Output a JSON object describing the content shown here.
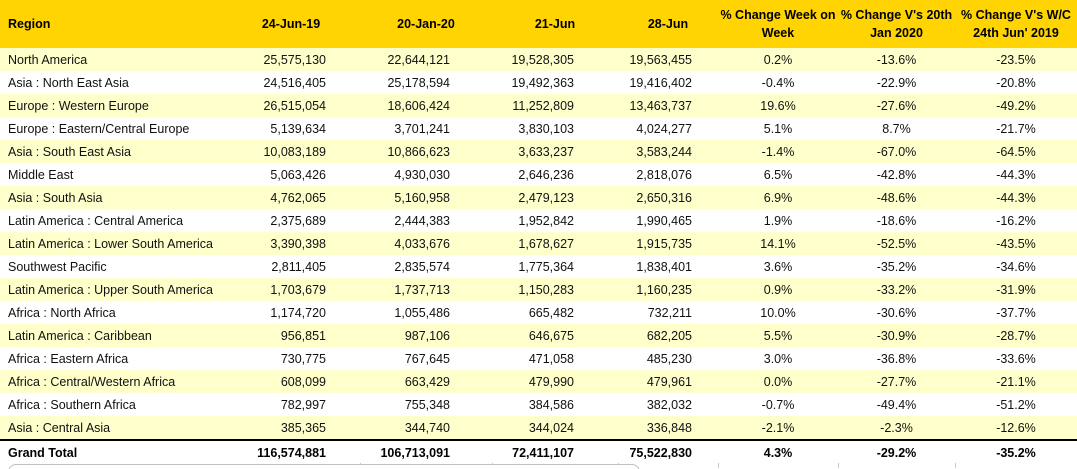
{
  "colors": {
    "header_bg": "#FFD400",
    "row_alt_bg": "#FFFFCC",
    "row_bg": "#FFFFFF",
    "text": "#000000",
    "grand_total_border": "#000000",
    "grid_gray": "#BFBFBF"
  },
  "table": {
    "columns": [
      {
        "key": "region",
        "label": "Region"
      },
      {
        "key": "v1",
        "label": "24-Jun-19"
      },
      {
        "key": "v2",
        "label": "20-Jan-20"
      },
      {
        "key": "v3",
        "label": "21-Jun"
      },
      {
        "key": "v4",
        "label": "28-Jun"
      },
      {
        "key": "pct_wow",
        "label": "% Change Week on\nWeek"
      },
      {
        "key": "pct_jan",
        "label": "% Change V's 20th\nJan 2020"
      },
      {
        "key": "pct_wc",
        "label": "% Change V's W/C\n24th Jun' 2019"
      }
    ],
    "rows": [
      [
        "North America",
        "25,575,130",
        "22,644,121",
        "19,528,305",
        "19,563,455",
        "0.2%",
        "-13.6%",
        "-23.5%"
      ],
      [
        "Asia : North East Asia",
        "24,516,405",
        "25,178,594",
        "19,492,363",
        "19,416,402",
        "-0.4%",
        "-22.9%",
        "-20.8%"
      ],
      [
        "Europe : Western Europe",
        "26,515,054",
        "18,606,424",
        "11,252,809",
        "13,463,737",
        "19.6%",
        "-27.6%",
        "-49.2%"
      ],
      [
        "Europe : Eastern/Central Europe",
        "5,139,634",
        "3,701,241",
        "3,830,103",
        "4,024,277",
        "5.1%",
        "8.7%",
        "-21.7%"
      ],
      [
        "Asia : South East Asia",
        "10,083,189",
        "10,866,623",
        "3,633,237",
        "3,583,244",
        "-1.4%",
        "-67.0%",
        "-64.5%"
      ],
      [
        "Middle East",
        "5,063,426",
        "4,930,030",
        "2,646,236",
        "2,818,076",
        "6.5%",
        "-42.8%",
        "-44.3%"
      ],
      [
        "Asia : South Asia",
        "4,762,065",
        "5,160,958",
        "2,479,123",
        "2,650,316",
        "6.9%",
        "-48.6%",
        "-44.3%"
      ],
      [
        "Latin America : Central America",
        "2,375,689",
        "2,444,383",
        "1,952,842",
        "1,990,465",
        "1.9%",
        "-18.6%",
        "-16.2%"
      ],
      [
        "Latin America : Lower South America",
        "3,390,398",
        "4,033,676",
        "1,678,627",
        "1,915,735",
        "14.1%",
        "-52.5%",
        "-43.5%"
      ],
      [
        "Southwest Pacific",
        "2,811,405",
        "2,835,574",
        "1,775,364",
        "1,838,401",
        "3.6%",
        "-35.2%",
        "-34.6%"
      ],
      [
        "Latin America : Upper South America",
        "1,703,679",
        "1,737,713",
        "1,150,283",
        "1,160,235",
        "0.9%",
        "-33.2%",
        "-31.9%"
      ],
      [
        "Africa : North Africa",
        "1,174,720",
        "1,055,486",
        "665,482",
        "732,211",
        "10.0%",
        "-30.6%",
        "-37.7%"
      ],
      [
        "Latin America : Caribbean",
        "956,851",
        "987,106",
        "646,675",
        "682,205",
        "5.5%",
        "-30.9%",
        "-28.7%"
      ],
      [
        "Africa : Eastern Africa",
        "730,775",
        "767,645",
        "471,058",
        "485,230",
        "3.0%",
        "-36.8%",
        "-33.6%"
      ],
      [
        "Africa : Central/Western Africa",
        "608,099",
        "663,429",
        "479,990",
        "479,961",
        "0.0%",
        "-27.7%",
        "-21.1%"
      ],
      [
        "Africa : Southern Africa",
        "782,997",
        "755,348",
        "384,586",
        "382,032",
        "-0.7%",
        "-49.4%",
        "-51.2%"
      ],
      [
        "Asia : Central Asia",
        "385,365",
        "344,740",
        "344,024",
        "336,848",
        "-2.1%",
        "-2.3%",
        "-12.6%"
      ]
    ],
    "grand_total": [
      "Grand Total",
      "116,574,881",
      "106,713,091",
      "72,411,107",
      "75,522,830",
      "4.3%",
      "-29.2%",
      "-35.2%"
    ]
  }
}
